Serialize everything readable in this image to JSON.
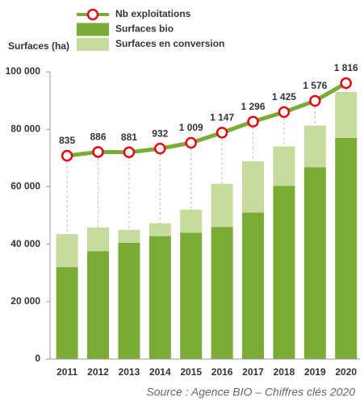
{
  "chart_data": {
    "type": "bar-line",
    "y_axis_label": "Surfaces (ha)",
    "source": "Source : Agence BIO – Chiffres clés 2020",
    "categories": [
      "2011",
      "2012",
      "2013",
      "2014",
      "2015",
      "2016",
      "2017",
      "2018",
      "2019",
      "2020"
    ],
    "series": [
      {
        "name": "Nb exploitations",
        "type": "line",
        "axis": "y2",
        "color": "#7aab35",
        "marker_color": "#e30613",
        "values": [
          835,
          886,
          881,
          932,
          1009,
          1147,
          1296,
          1425,
          1576,
          1816
        ],
        "value_labels": [
          "835",
          "886",
          "881",
          "932",
          "1 009",
          "1 147",
          "1 296",
          "1 425",
          "1 576",
          "1 816"
        ]
      },
      {
        "name": "Surfaces bio",
        "type": "bar",
        "color": "#7aab35",
        "values": [
          32000,
          37500,
          40500,
          42800,
          44000,
          46000,
          51000,
          60300,
          66800,
          77000
        ]
      },
      {
        "name": "Surfaces en conversion",
        "type": "bar",
        "color": "#c5dc9e",
        "values": [
          11500,
          8300,
          4500,
          4500,
          8000,
          15000,
          17800,
          13700,
          14500,
          16000
        ]
      }
    ],
    "stacked": true,
    "ylim": [
      0,
      100000
    ],
    "yticks": [
      0,
      {
        "value": 20000,
        "label": "20 000"
      },
      {
        "value": 40000,
        "label": "40 000"
      },
      {
        "value": 60000,
        "label": "60 000"
      },
      {
        "value": 80000,
        "label": "80 000"
      },
      {
        "value": 100000,
        "label": "100 000"
      }
    ],
    "y2lim": [
      -1913,
      1969
    ]
  }
}
